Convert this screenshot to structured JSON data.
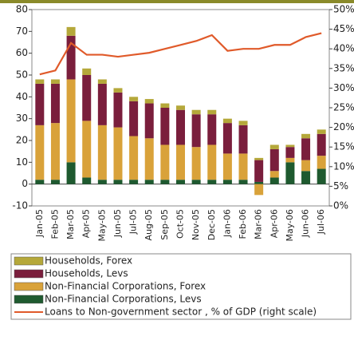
{
  "chart_data": {
    "type": "bar",
    "stacked": true,
    "categories": [
      "Jan-05",
      "Feb-05",
      "Mar-05",
      "Apr-05",
      "May-05",
      "Jun-05",
      "Jul-05",
      "Aug-05",
      "Sep-05",
      "Oct-05",
      "Nov-05",
      "Dec-05",
      "Jan-06",
      "Feb-06",
      "Mar-06",
      "Apr-06",
      "May-06",
      "Jun-06",
      "Jul-06"
    ],
    "series": [
      {
        "name": "Non-Financial Corporations, Levs",
        "color": "#1e5a2f",
        "values": [
          2,
          2,
          10,
          3,
          2,
          2,
          2,
          2,
          2,
          2,
          2,
          2,
          2,
          2,
          1,
          3,
          10,
          6,
          7
        ]
      },
      {
        "name": "Non-Financial Corporations, Forex",
        "color": "#d9a23a",
        "values": [
          25,
          26,
          38,
          26,
          25,
          24,
          20,
          19,
          16,
          16,
          15,
          16,
          12,
          12,
          -5,
          3,
          2,
          5,
          6
        ]
      },
      {
        "name": "Households, Levs",
        "color": "#7a1e3c",
        "values": [
          19,
          18,
          20,
          21,
          19,
          16,
          16,
          16,
          17,
          16,
          15,
          14,
          14,
          13,
          10,
          10,
          5,
          10,
          10
        ]
      },
      {
        "name": "Households, Forex",
        "color": "#b5a83a",
        "values": [
          2,
          2,
          4,
          3,
          2,
          2,
          2,
          2,
          2,
          2,
          2,
          2,
          2,
          2,
          1,
          2,
          1,
          2,
          2
        ]
      },
      {
        "name": "Loans to Non-government sector , % of GDP (right scale)",
        "color": "#e05a2a",
        "type": "line",
        "axis": "y2",
        "values": [
          33.5,
          34.5,
          41.5,
          38.5,
          38.5,
          38,
          38.5,
          39,
          40,
          41,
          42,
          43.5,
          39.5,
          40,
          40,
          41,
          41,
          43,
          44
        ]
      }
    ],
    "legend_order": [
      3,
      2,
      1,
      0,
      4
    ],
    "ylim": [
      -10,
      80
    ],
    "yticks": [
      -10,
      0,
      10,
      20,
      30,
      40,
      50,
      60,
      70,
      80
    ],
    "y2lim": [
      0,
      50
    ],
    "y2ticks": [
      {
        "value": 0,
        "label": "0%"
      },
      {
        "value": 5,
        "label": "5%"
      },
      {
        "value": 10,
        "label": "10%"
      },
      {
        "value": 15,
        "label": "15%"
      },
      {
        "value": 20,
        "label": "20%"
      },
      {
        "value": 25,
        "label": "25%"
      },
      {
        "value": 30,
        "label": "30%"
      },
      {
        "value": 35,
        "label": "35%"
      },
      {
        "value": 40,
        "label": "40%"
      },
      {
        "value": 45,
        "label": "45%"
      },
      {
        "value": 50,
        "label": "50%"
      }
    ]
  }
}
